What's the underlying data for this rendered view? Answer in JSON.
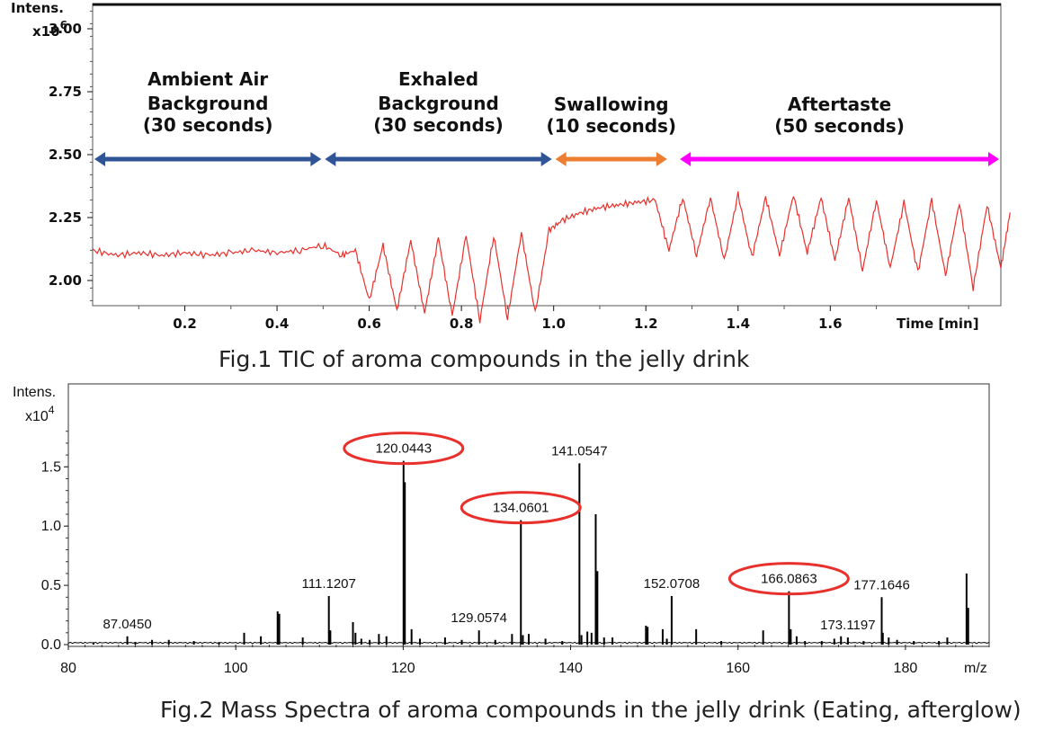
{
  "figures": {
    "fig1_caption": "Fig.1 TIC of aroma compounds in the jelly drink",
    "fig2_caption": "Fig.2 Mass Spectra of aroma compounds in the jelly drink (Eating, afterglow)"
  },
  "chart_data": [
    {
      "type": "line",
      "title": "",
      "ylabel": "Intens.",
      "yunit": "x10^6",
      "xlabel": "Time [min]",
      "xlim": [
        0.0,
        1.97
      ],
      "ylim": [
        1.9,
        3.1
      ],
      "x_ticks": [
        "0.2",
        "0.4",
        "0.6",
        "0.8",
        "1.0",
        "1.2",
        "1.4",
        "1.6"
      ],
      "y_ticks": [
        "2.00",
        "2.25",
        "2.50",
        "2.75",
        "3.00"
      ],
      "series_color": "#e8302c",
      "segments": [
        {
          "label": "Ambient Air Background",
          "duration": "(30 seconds)",
          "start": 0.0,
          "end": 0.5,
          "color": "#2f5597"
        },
        {
          "label": "Exhaled Background",
          "duration": "(30 seconds)",
          "start": 0.5,
          "end": 1.0,
          "color": "#2f5597"
        },
        {
          "label": "Swallowing",
          "duration": "(10 seconds)",
          "start": 1.0,
          "end": 1.25,
          "color": "#ed7d31"
        },
        {
          "label": "Aftertaste",
          "duration": "(50 seconds)",
          "start": 1.27,
          "end": 2.0,
          "color": "#ff00ff"
        }
      ],
      "trace": [
        [
          0.0,
          2.12
        ],
        [
          0.05,
          2.1
        ],
        [
          0.1,
          2.11
        ],
        [
          0.15,
          2.1
        ],
        [
          0.2,
          2.11
        ],
        [
          0.25,
          2.1
        ],
        [
          0.3,
          2.11
        ],
        [
          0.35,
          2.12
        ],
        [
          0.4,
          2.11
        ],
        [
          0.45,
          2.12
        ],
        [
          0.5,
          2.14
        ],
        [
          0.54,
          2.1
        ],
        [
          0.57,
          2.12
        ],
        [
          0.6,
          1.92
        ],
        [
          0.63,
          2.14
        ],
        [
          0.66,
          1.88
        ],
        [
          0.69,
          2.16
        ],
        [
          0.72,
          1.87
        ],
        [
          0.75,
          2.17
        ],
        [
          0.78,
          1.86
        ],
        [
          0.81,
          2.18
        ],
        [
          0.84,
          1.84
        ],
        [
          0.87,
          2.18
        ],
        [
          0.9,
          1.85
        ],
        [
          0.93,
          2.19
        ],
        [
          0.96,
          1.87
        ],
        [
          0.99,
          2.2
        ],
        [
          1.02,
          2.24
        ],
        [
          1.06,
          2.27
        ],
        [
          1.1,
          2.29
        ],
        [
          1.14,
          2.3
        ],
        [
          1.18,
          2.31
        ],
        [
          1.22,
          2.32
        ],
        [
          1.25,
          2.12
        ],
        [
          1.28,
          2.33
        ],
        [
          1.31,
          2.1
        ],
        [
          1.34,
          2.33
        ],
        [
          1.37,
          2.08
        ],
        [
          1.4,
          2.34
        ],
        [
          1.43,
          2.09
        ],
        [
          1.46,
          2.33
        ],
        [
          1.49,
          2.1
        ],
        [
          1.52,
          2.34
        ],
        [
          1.55,
          2.11
        ],
        [
          1.58,
          2.33
        ],
        [
          1.61,
          2.08
        ],
        [
          1.64,
          2.33
        ],
        [
          1.67,
          2.04
        ],
        [
          1.7,
          2.32
        ],
        [
          1.73,
          2.05
        ],
        [
          1.76,
          2.31
        ],
        [
          1.79,
          2.03
        ],
        [
          1.82,
          2.32
        ],
        [
          1.85,
          2.02
        ],
        [
          1.88,
          2.31
        ],
        [
          1.91,
          1.97
        ],
        [
          1.94,
          2.3
        ],
        [
          1.97,
          2.05
        ],
        [
          1.99,
          2.27
        ]
      ]
    },
    {
      "type": "bar",
      "title": "",
      "ylabel": "Intens.",
      "yunit": "x10^4",
      "xlabel": "m/z",
      "xlim": [
        80,
        190
      ],
      "ylim": [
        0,
        2.2
      ],
      "x_ticks": [
        "80",
        "100",
        "120",
        "140",
        "160",
        "180"
      ],
      "y_ticks": [
        "0.0",
        "0.5",
        "1.0",
        "1.5"
      ],
      "series_color": "#000000",
      "highlight_color": "#e8302c",
      "labeled_peaks": [
        {
          "mz": 87.045,
          "label": "87.0450",
          "intensity": 0.07,
          "highlight": false
        },
        {
          "mz": 111.1207,
          "label": "111.1207",
          "intensity": 0.41,
          "highlight": false
        },
        {
          "mz": 120.0443,
          "label": "120.0443",
          "intensity": 1.55,
          "highlight": true
        },
        {
          "mz": 129.0574,
          "label": "129.0574",
          "intensity": 0.12,
          "highlight": false
        },
        {
          "mz": 134.0601,
          "label": "134.0601",
          "intensity": 1.05,
          "highlight": true
        },
        {
          "mz": 141.0547,
          "label": "141.0547",
          "intensity": 1.53,
          "highlight": false
        },
        {
          "mz": 152.0708,
          "label": "152.0708",
          "intensity": 0.41,
          "highlight": false
        },
        {
          "mz": 166.0863,
          "label": "166.0863",
          "intensity": 0.45,
          "highlight": true
        },
        {
          "mz": 173.1197,
          "label": "173.1197",
          "intensity": 0.06,
          "highlight": false
        },
        {
          "mz": 177.1646,
          "label": "177.1646",
          "intensity": 0.4,
          "highlight": false
        }
      ],
      "unlabeled_peaks": [
        [
          83,
          0.02
        ],
        [
          88,
          0.02
        ],
        [
          90,
          0.04
        ],
        [
          92,
          0.04
        ],
        [
          95,
          0.03
        ],
        [
          98,
          0.02
        ],
        [
          101,
          0.1
        ],
        [
          103,
          0.07
        ],
        [
          105,
          0.28
        ],
        [
          105.2,
          0.26
        ],
        [
          108,
          0.06
        ],
        [
          111.3,
          0.12
        ],
        [
          114,
          0.19
        ],
        [
          114.3,
          0.1
        ],
        [
          115,
          0.05
        ],
        [
          116,
          0.04
        ],
        [
          117.1,
          0.09
        ],
        [
          118,
          0.07
        ],
        [
          120.2,
          1.37
        ],
        [
          121,
          0.13
        ],
        [
          122,
          0.05
        ],
        [
          125,
          0.06
        ],
        [
          127,
          0.04
        ],
        [
          131,
          0.04
        ],
        [
          133,
          0.09
        ],
        [
          134.3,
          0.08
        ],
        [
          135,
          0.09
        ],
        [
          137,
          0.05
        ],
        [
          139,
          0.03
        ],
        [
          141.3,
          0.08
        ],
        [
          142,
          0.11
        ],
        [
          142.5,
          0.1
        ],
        [
          143,
          1.1
        ],
        [
          143.2,
          0.62
        ],
        [
          144,
          0.06
        ],
        [
          145,
          0.06
        ],
        [
          149,
          0.16
        ],
        [
          149.2,
          0.15
        ],
        [
          151,
          0.13
        ],
        [
          151.5,
          0.05
        ],
        [
          155,
          0.13
        ],
        [
          158,
          0.03
        ],
        [
          163,
          0.12
        ],
        [
          166.3,
          0.13
        ],
        [
          167,
          0.07
        ],
        [
          168,
          0.03
        ],
        [
          170,
          0.03
        ],
        [
          171.5,
          0.05
        ],
        [
          172.3,
          0.07
        ],
        [
          175,
          0.03
        ],
        [
          177.3,
          0.1
        ],
        [
          178,
          0.06
        ],
        [
          179,
          0.04
        ],
        [
          181,
          0.03
        ],
        [
          184,
          0.03
        ],
        [
          185,
          0.06
        ],
        [
          187.3,
          0.6
        ],
        [
          187.5,
          0.31
        ]
      ]
    }
  ]
}
